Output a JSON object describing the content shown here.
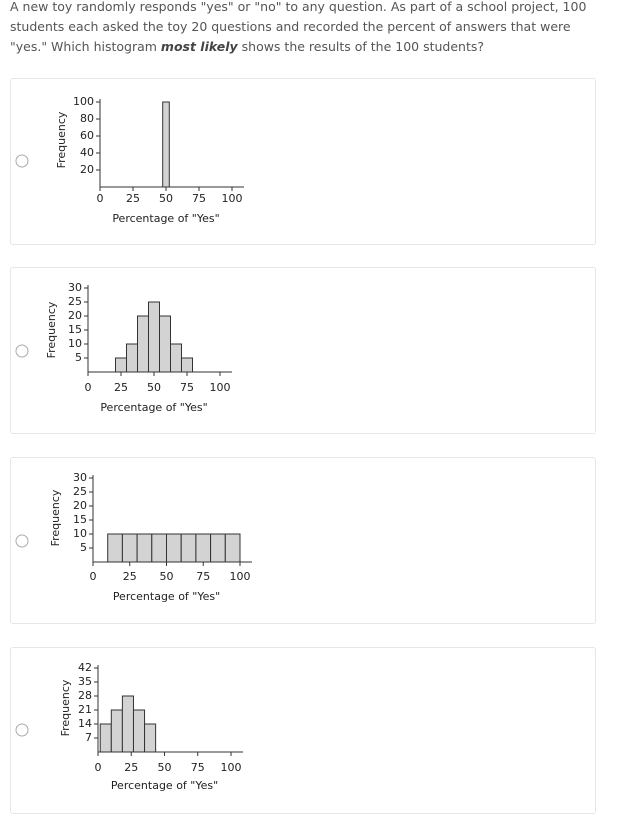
{
  "question": {
    "before": "A new toy randomly responds \"yes\" or \"no\" to any question. As part of a school project, 100 students each asked the toy 20 questions and recorded the percent of answers that were \"yes.\" Which histogram ",
    "emphasis": "most likely",
    "after": " shows the results of the 100 students?"
  },
  "chart_data": [
    {
      "type": "histogram",
      "ylabel": "Frequency",
      "xlabel": "Percentage of \"Yes\"",
      "bins": [
        47.5,
        52.5
      ],
      "counts": [
        100
      ],
      "color": "#d3d3d3",
      "xlim": [
        0,
        100
      ],
      "xticks": [
        0,
        25,
        50,
        75,
        100
      ],
      "ylim": [
        0,
        100
      ],
      "yticks": [
        20,
        40,
        60,
        80,
        100
      ]
    },
    {
      "type": "histogram",
      "ylabel": "Frequency",
      "xlabel": "Percentage of \"Yes\"",
      "bins": [
        20.83,
        29.17,
        37.5,
        45.83,
        54.17,
        62.5,
        70.83,
        79.17
      ],
      "counts": [
        5,
        10,
        20,
        25,
        20,
        10,
        5
      ],
      "color": "#d3d3d3",
      "xlim": [
        0,
        100
      ],
      "xticks": [
        0,
        25,
        50,
        75,
        100
      ],
      "ylim": [
        0,
        30
      ],
      "yticks": [
        5,
        10,
        15,
        20,
        25,
        30
      ]
    },
    {
      "type": "histogram",
      "ylabel": "Frequency",
      "xlabel": "Percentage of \"Yes\"",
      "bins": [
        10,
        20,
        30,
        40,
        50,
        60,
        70,
        80,
        90,
        100
      ],
      "counts": [
        10,
        10,
        10,
        10,
        10,
        10,
        10,
        10,
        10
      ],
      "color": "#d3d3d3",
      "xlim": [
        0,
        100
      ],
      "xticks": [
        0,
        25,
        50,
        75,
        100
      ],
      "ylim": [
        0,
        30
      ],
      "yticks": [
        5,
        10,
        15,
        20,
        25,
        30
      ]
    },
    {
      "type": "histogram",
      "ylabel": "Frequency",
      "xlabel": "Percentage of \"Yes\"",
      "bins": [
        1.67,
        10,
        18.33,
        26.67,
        35,
        43.33
      ],
      "counts": [
        14,
        21,
        28,
        21,
        14
      ],
      "color": "#d3d3d3",
      "xlim": [
        0,
        100
      ],
      "xticks": [
        0,
        25,
        50,
        75,
        100
      ],
      "ylim": [
        0,
        42
      ],
      "yticks": [
        7,
        14,
        21,
        28,
        35,
        42
      ]
    }
  ]
}
